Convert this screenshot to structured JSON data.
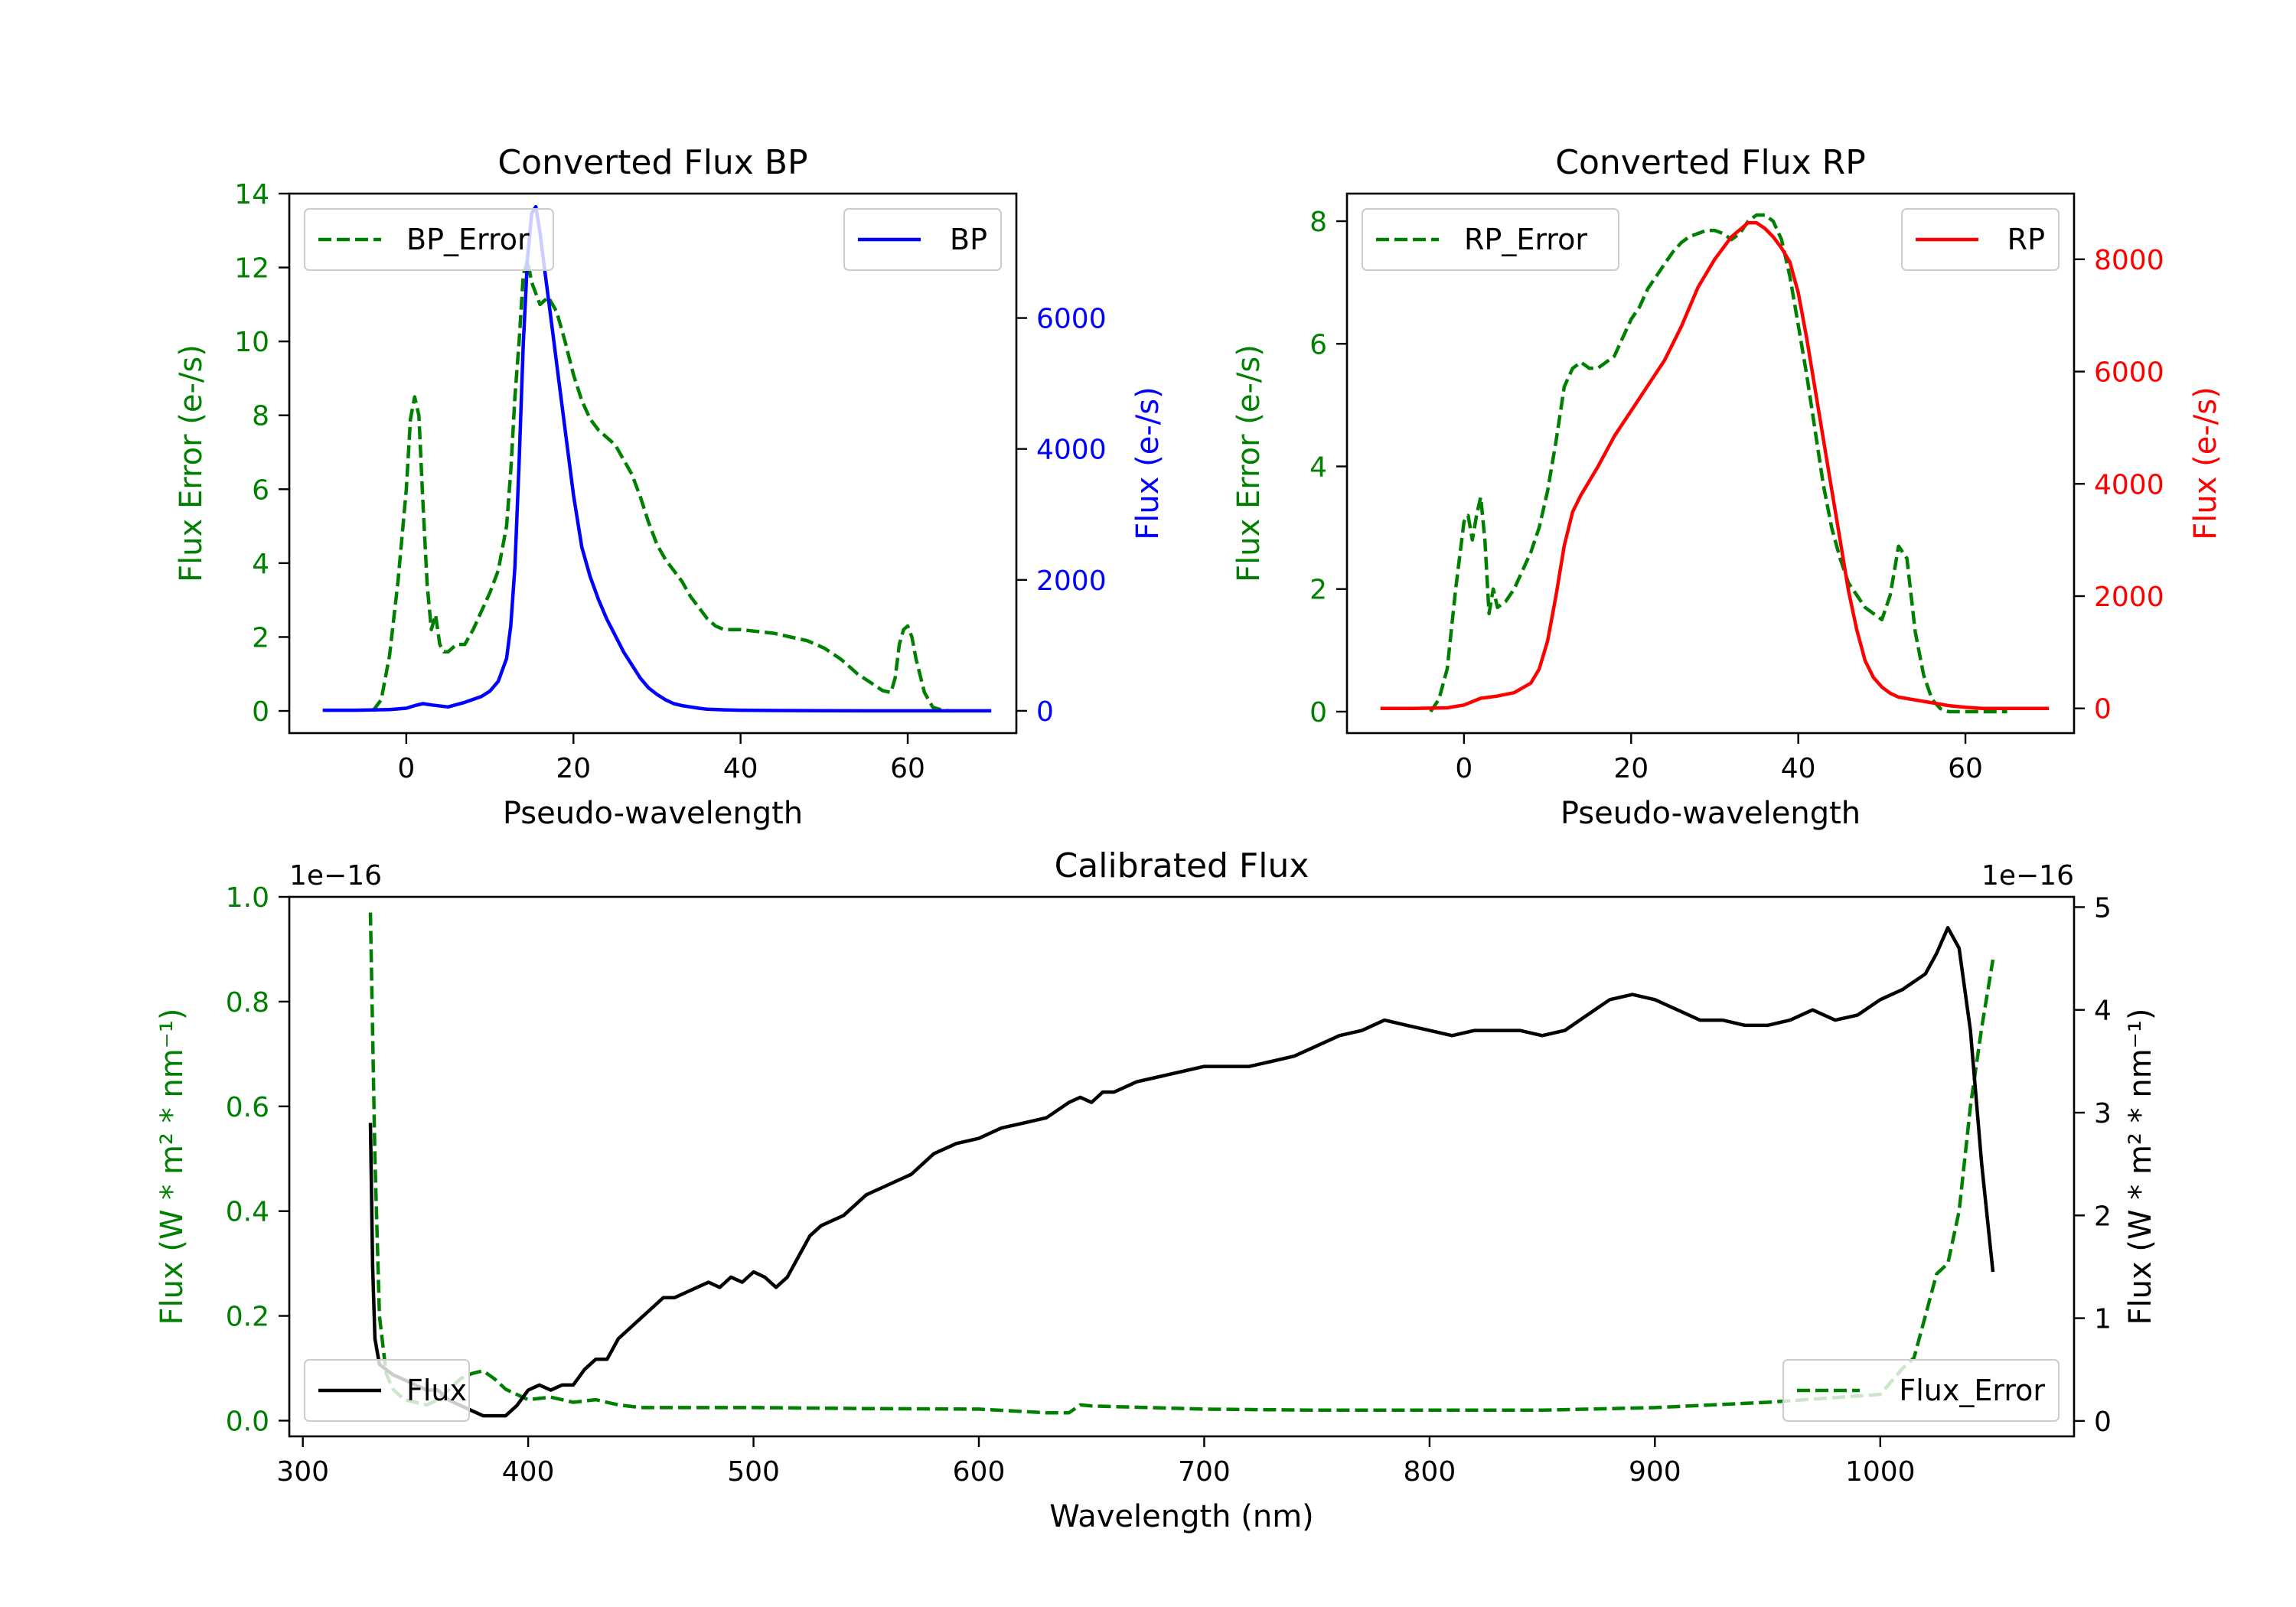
{
  "colors": {
    "error": "#008000",
    "bp": "#0000ff",
    "rp": "#ff0000",
    "flux": "#000000"
  },
  "chart_data": [
    {
      "id": "bp",
      "type": "line",
      "title": "Converted Flux BP",
      "xlabel": "Pseudo-wavelength",
      "ylabel_left": "Flux Error (e-/s)",
      "ylabel_right": "Flux (e-/s)",
      "xlim": [
        -14,
        73
      ],
      "ylim_left": [
        -0.6,
        14.0
      ],
      "ylim_right": [
        -340,
        7900
      ],
      "xticks": [
        "0",
        "20",
        "40",
        "60"
      ],
      "yticks_left": [
        "0",
        "2",
        "4",
        "6",
        "8",
        "10",
        "12",
        "14"
      ],
      "yticks_right": [
        "0",
        "2000",
        "4000",
        "6000"
      ],
      "legend_left": "BP_Error",
      "legend_right": "BP",
      "series": [
        {
          "name": "BP_Error",
          "axis": "left",
          "style": "dashed",
          "color": "#008000",
          "x": [
            -4,
            -3,
            -2,
            -1,
            0,
            0.5,
            1,
            1.5,
            2,
            2.5,
            3,
            3.5,
            4,
            4.5,
            5,
            6,
            7,
            8,
            9,
            10,
            11,
            12,
            12.5,
            13,
            13.5,
            14,
            14.5,
            15,
            15.5,
            16,
            17,
            18,
            19,
            20,
            21,
            22,
            23,
            24,
            25,
            26,
            27,
            28,
            29,
            30,
            31,
            32,
            33,
            34,
            35,
            36,
            37,
            38,
            39,
            40,
            42,
            44,
            46,
            48,
            50,
            52,
            54,
            56,
            57,
            58,
            58.5,
            59,
            59.5,
            60,
            60.5,
            61,
            62,
            63,
            64,
            65
          ],
          "values": [
            0,
            0.3,
            1.5,
            3.5,
            6.0,
            7.9,
            8.5,
            8.0,
            5.6,
            3.4,
            2.2,
            2.6,
            1.8,
            1.6,
            1.6,
            1.8,
            1.8,
            2.2,
            2.7,
            3.2,
            3.8,
            5.0,
            6.5,
            8.5,
            10.0,
            11.8,
            12.2,
            11.6,
            11.3,
            11.0,
            11.2,
            10.8,
            10.0,
            9.1,
            8.4,
            7.9,
            7.6,
            7.4,
            7.2,
            6.8,
            6.4,
            5.8,
            5.1,
            4.5,
            4.1,
            3.8,
            3.5,
            3.1,
            2.8,
            2.5,
            2.3,
            2.2,
            2.2,
            2.2,
            2.15,
            2.1,
            2.0,
            1.9,
            1.7,
            1.4,
            1.0,
            0.7,
            0.55,
            0.5,
            0.9,
            1.8,
            2.2,
            2.3,
            2.0,
            1.4,
            0.5,
            0.1,
            0.03,
            0.0
          ]
        },
        {
          "name": "BP",
          "axis": "right",
          "style": "solid",
          "color": "#0000ff",
          "x": [
            -10,
            -6,
            -2,
            0,
            1,
            2,
            3,
            5,
            7,
            9,
            10,
            11,
            12,
            12.5,
            13,
            13.5,
            14,
            14.5,
            15,
            15.5,
            16,
            16.5,
            17,
            17.5,
            18,
            19,
            20,
            21,
            22,
            23,
            24,
            25,
            26,
            27,
            28,
            29,
            30,
            31,
            32,
            33,
            34,
            35,
            36,
            38,
            40,
            45,
            50,
            55,
            58,
            60,
            62,
            65,
            70
          ],
          "values": [
            10,
            10,
            20,
            40,
            80,
            110,
            90,
            60,
            130,
            220,
            300,
            450,
            800,
            1300,
            2200,
            3800,
            5600,
            6900,
            7600,
            7700,
            7300,
            6800,
            6300,
            5800,
            5300,
            4300,
            3300,
            2500,
            2050,
            1700,
            1400,
            1150,
            900,
            700,
            500,
            350,
            250,
            170,
            110,
            80,
            60,
            40,
            25,
            15,
            10,
            5,
            3,
            0,
            0,
            0,
            0,
            0,
            0
          ]
        }
      ]
    },
    {
      "id": "rp",
      "type": "line",
      "title": "Converted Flux RP",
      "xlabel": "Pseudo-wavelength",
      "ylabel_left": "Flux Error (e-/s)",
      "ylabel_right": "Flux (e-/s)",
      "xlim": [
        -14,
        73
      ],
      "ylim_left": [
        -0.35,
        8.45
      ],
      "ylim_right": [
        -440,
        9170
      ],
      "xticks": [
        "0",
        "20",
        "40",
        "60"
      ],
      "yticks_left": [
        "0",
        "2",
        "4",
        "6",
        "8"
      ],
      "yticks_right": [
        "0",
        "2000",
        "4000",
        "6000",
        "8000"
      ],
      "legend_left": "RP_Error",
      "legend_right": "RP",
      "series": [
        {
          "name": "RP_Error",
          "axis": "left",
          "style": "dashed",
          "color": "#008000",
          "x": [
            -4,
            -3,
            -2,
            -1,
            0,
            0.5,
            1,
            1.5,
            2,
            2.5,
            3,
            3.5,
            4,
            5,
            6,
            7,
            8,
            9,
            10,
            11,
            12,
            13,
            14,
            15,
            16,
            17,
            18,
            19,
            20,
            21,
            22,
            23,
            24,
            25,
            26,
            27,
            28,
            29,
            30,
            31,
            32,
            33,
            34,
            35,
            36,
            37,
            38,
            39,
            40,
            41,
            42,
            43,
            44,
            45,
            46,
            47,
            48,
            49,
            50,
            51,
            52,
            53,
            54,
            55,
            56,
            57,
            58,
            59,
            60,
            61,
            62,
            63,
            64,
            65
          ],
          "values": [
            0,
            0.2,
            0.7,
            2.0,
            3.1,
            3.2,
            2.8,
            3.2,
            3.5,
            2.8,
            1.6,
            2.0,
            1.7,
            1.8,
            2.0,
            2.3,
            2.6,
            3.0,
            3.6,
            4.4,
            5.3,
            5.6,
            5.7,
            5.6,
            5.6,
            5.7,
            5.8,
            6.1,
            6.4,
            6.6,
            6.9,
            7.1,
            7.3,
            7.5,
            7.65,
            7.75,
            7.8,
            7.85,
            7.85,
            7.8,
            7.7,
            7.8,
            8.0,
            8.1,
            8.1,
            8.0,
            7.7,
            7.1,
            6.3,
            5.5,
            4.6,
            3.7,
            3.0,
            2.5,
            2.1,
            1.9,
            1.7,
            1.6,
            1.5,
            1.9,
            2.7,
            2.5,
            1.3,
            0.6,
            0.2,
            0.05,
            0,
            0,
            0,
            0,
            0,
            0,
            0,
            0
          ]
        },
        {
          "name": "RP",
          "axis": "right",
          "style": "solid",
          "color": "#ff0000",
          "x": [
            -10,
            -6,
            -2,
            0,
            2,
            4,
            6,
            8,
            9,
            10,
            11,
            12,
            13,
            14,
            15,
            16,
            18,
            20,
            22,
            24,
            26,
            28,
            30,
            32,
            34,
            35,
            36,
            37,
            38,
            39,
            40,
            41,
            42,
            43,
            44,
            45,
            46,
            47,
            48,
            49,
            50,
            51,
            52,
            54,
            56,
            58,
            60,
            62,
            65,
            70
          ],
          "values": [
            0,
            0,
            10,
            60,
            180,
            220,
            280,
            450,
            700,
            1200,
            2000,
            2900,
            3500,
            3800,
            4050,
            4300,
            4850,
            5300,
            5750,
            6200,
            6800,
            7500,
            8000,
            8400,
            8650,
            8650,
            8550,
            8400,
            8200,
            7950,
            7400,
            6600,
            5700,
            4800,
            3900,
            3000,
            2100,
            1400,
            850,
            550,
            380,
            270,
            200,
            150,
            100,
            50,
            20,
            0,
            0,
            0
          ]
        }
      ]
    },
    {
      "id": "cal",
      "type": "line",
      "title": "Calibrated Flux",
      "xlabel": "Wavelength (nm)",
      "ylabel_left": "Flux (W * m² * nm⁻¹)",
      "ylabel_right": "Flux (W * m² * nm⁻¹)",
      "offset_left": "1e−16",
      "offset_right": "1e−16",
      "xlim": [
        294,
        1086
      ],
      "ylim_left": [
        -0.03,
        1.0
      ],
      "ylim_right": [
        -0.15,
        5.1
      ],
      "xticks": [
        "300",
        "400",
        "500",
        "600",
        "700",
        "800",
        "900",
        "1000"
      ],
      "yticks_left": [
        "0.0",
        "0.2",
        "0.4",
        "0.6",
        "0.8",
        "1.0"
      ],
      "yticks_right": [
        "0",
        "1",
        "2",
        "3",
        "4",
        "5"
      ],
      "legend_left": "Flux",
      "legend_right": "Flux_Error",
      "series": [
        {
          "name": "Flux_Error",
          "axis": "left",
          "style": "dashed",
          "color": "#008000",
          "x": [
            330,
            332,
            334,
            337,
            340,
            345,
            350,
            355,
            360,
            365,
            370,
            375,
            380,
            385,
            390,
            400,
            410,
            420,
            430,
            440,
            450,
            500,
            550,
            600,
            630,
            640,
            645,
            650,
            700,
            750,
            800,
            850,
            900,
            950,
            1000,
            1010,
            1015,
            1020,
            1025,
            1030,
            1035,
            1040,
            1045,
            1050
          ],
          "values": [
            0.97,
            0.5,
            0.2,
            0.09,
            0.06,
            0.04,
            0.035,
            0.03,
            0.04,
            0.06,
            0.08,
            0.09,
            0.095,
            0.08,
            0.06,
            0.04,
            0.045,
            0.035,
            0.04,
            0.03,
            0.025,
            0.025,
            0.023,
            0.022,
            0.015,
            0.015,
            0.03,
            0.028,
            0.022,
            0.02,
            0.02,
            0.02,
            0.025,
            0.035,
            0.05,
            0.1,
            0.12,
            0.2,
            0.28,
            0.3,
            0.4,
            0.6,
            0.75,
            0.88
          ]
        },
        {
          "name": "Flux",
          "axis": "right",
          "style": "solid",
          "color": "#000000",
          "x": [
            330,
            331,
            332,
            334,
            337,
            340,
            345,
            350,
            355,
            360,
            365,
            370,
            375,
            380,
            385,
            390,
            395,
            400,
            405,
            410,
            415,
            420,
            425,
            430,
            435,
            440,
            445,
            450,
            455,
            460,
            465,
            470,
            475,
            480,
            485,
            490,
            495,
            500,
            505,
            510,
            515,
            520,
            525,
            530,
            540,
            550,
            560,
            570,
            580,
            590,
            600,
            610,
            620,
            630,
            640,
            645,
            650,
            655,
            660,
            665,
            670,
            680,
            690,
            700,
            710,
            720,
            730,
            740,
            750,
            760,
            770,
            780,
            790,
            800,
            810,
            820,
            830,
            840,
            850,
            860,
            870,
            880,
            890,
            900,
            910,
            920,
            930,
            940,
            950,
            960,
            970,
            980,
            990,
            1000,
            1010,
            1020,
            1025,
            1030,
            1035,
            1040,
            1045,
            1050
          ],
          "values": [
            2.9,
            1.5,
            0.8,
            0.55,
            0.5,
            0.45,
            0.4,
            0.35,
            0.3,
            0.3,
            0.2,
            0.15,
            0.1,
            0.05,
            0.05,
            0.05,
            0.15,
            0.3,
            0.35,
            0.3,
            0.35,
            0.35,
            0.5,
            0.6,
            0.6,
            0.8,
            0.9,
            1.0,
            1.1,
            1.2,
            1.2,
            1.25,
            1.3,
            1.35,
            1.3,
            1.4,
            1.35,
            1.45,
            1.4,
            1.3,
            1.4,
            1.6,
            1.8,
            1.9,
            2.0,
            2.2,
            2.3,
            2.4,
            2.6,
            2.7,
            2.75,
            2.85,
            2.9,
            2.95,
            3.1,
            3.15,
            3.1,
            3.2,
            3.2,
            3.25,
            3.3,
            3.35,
            3.4,
            3.45,
            3.45,
            3.45,
            3.5,
            3.55,
            3.65,
            3.75,
            3.8,
            3.9,
            3.85,
            3.8,
            3.75,
            3.8,
            3.8,
            3.8,
            3.75,
            3.8,
            3.95,
            4.1,
            4.15,
            4.1,
            4.0,
            3.9,
            3.9,
            3.85,
            3.85,
            3.9,
            4.0,
            3.9,
            3.95,
            4.1,
            4.2,
            4.35,
            4.55,
            4.8,
            4.6,
            3.8,
            2.5,
            1.45
          ]
        }
      ]
    }
  ]
}
